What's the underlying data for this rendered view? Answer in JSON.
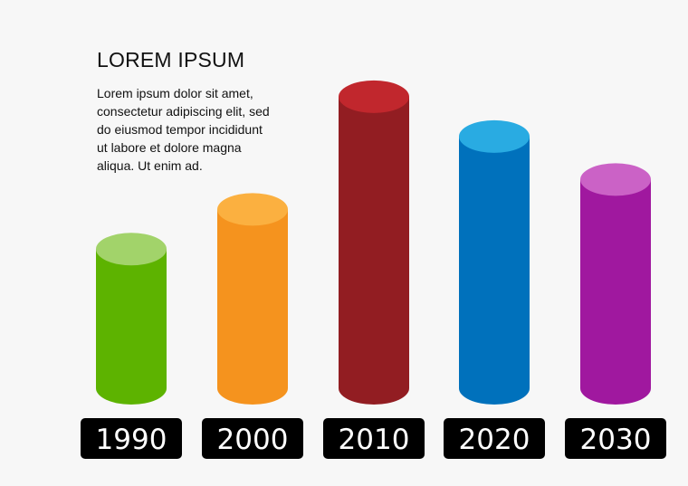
{
  "heading": {
    "title": "LOREM IPSUM",
    "lines": [
      "Lorem ipsum dolor sit amet,",
      "consectetur adipiscing elit, sed",
      "do eiusmod tempor incididunt",
      "ut labore et dolore magna",
      "aliqua. Ut enim ad."
    ]
  },
  "colors": {
    "background": "#f7f7f7",
    "label_box": "#000000",
    "label_text": "#ffffff"
  },
  "chart_data": {
    "type": "bar",
    "style": "3d-cylinder",
    "categories": [
      "1990",
      "2000",
      "2010",
      "2020",
      "2030"
    ],
    "values": [
      42,
      54,
      88,
      76,
      63
    ],
    "ylim": [
      0,
      100
    ],
    "grid": false,
    "legend": "none",
    "colors": [
      {
        "body": "#5db300",
        "top": "#a2d36a"
      },
      {
        "body": "#f5931e",
        "top": "#fbb040"
      },
      {
        "body": "#921d22",
        "top": "#c1272d"
      },
      {
        "body": "#0071bc",
        "top": "#29abe2"
      },
      {
        "body": "#a0189f",
        "top": "#cb62c6"
      }
    ]
  }
}
